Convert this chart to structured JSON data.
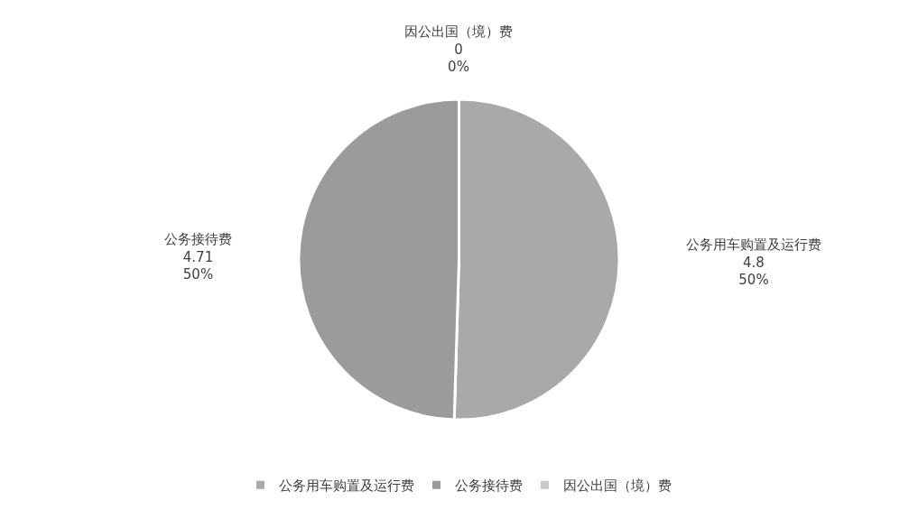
{
  "chart_data": {
    "type": "pie",
    "categories": [
      "公务用车购置及运行费",
      "公务接待费",
      "因公出国（境）费"
    ],
    "values": [
      4.8,
      4.71,
      0
    ],
    "colors": [
      "#a9a9a9",
      "#9b9b9b",
      "#c9c9c9"
    ],
    "value_labels": [
      "4.8\n50%",
      "4.71\n50%",
      "0\n0%"
    ],
    "legend": "bottom"
  }
}
